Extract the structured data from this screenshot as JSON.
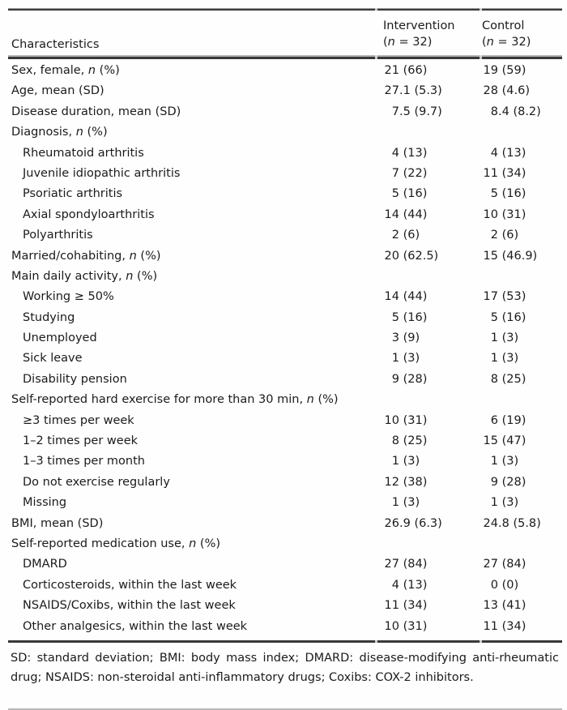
{
  "header": {
    "characteristics": "Characteristics",
    "groups": [
      {
        "title": "Intervention",
        "pre": "(",
        "n": "n",
        "post": " = 32)"
      },
      {
        "title": "Control",
        "pre": "(",
        "n": "n",
        "post": " = 32)"
      }
    ]
  },
  "np_suffix": {
    "pre": ", ",
    "n": "n",
    "post": " (%)"
  },
  "rows": [
    {
      "label": "Sex, female",
      "np": true,
      "ind": false,
      "v1": "21 (66)",
      "v2": "19 (59)"
    },
    {
      "label": "Age, mean (SD)",
      "np": false,
      "ind": false,
      "v1": "27.1 (5.3)",
      "v2": "28 (4.6)"
    },
    {
      "label": "Disease duration, mean (SD)",
      "np": false,
      "ind": false,
      "v1": "7.5 (9.7)",
      "v2": "8.4 (8.2)"
    },
    {
      "label": "Diagnosis",
      "np": true,
      "ind": false,
      "v1": null,
      "v2": null
    },
    {
      "label": "Rheumatoid arthritis",
      "np": false,
      "ind": true,
      "v1": "4 (13)",
      "v2": "4 (13)"
    },
    {
      "label": "Juvenile idiopathic arthritis",
      "np": false,
      "ind": true,
      "v1": "7 (22)",
      "v2": "11 (34)"
    },
    {
      "label": "Psoriatic arthritis",
      "np": false,
      "ind": true,
      "v1": "5 (16)",
      "v2": "5 (16)"
    },
    {
      "label": "Axial spondyloarthritis",
      "np": false,
      "ind": true,
      "v1": "14 (44)",
      "v2": "10 (31)"
    },
    {
      "label": "Polyarthritis",
      "np": false,
      "ind": true,
      "v1": "2 (6)",
      "v2": "2 (6)"
    },
    {
      "label": "Married/cohabiting",
      "np": true,
      "ind": false,
      "v1": "20 (62.5)",
      "v2": "15 (46.9)"
    },
    {
      "label": "Main daily activity",
      "np": true,
      "ind": false,
      "v1": null,
      "v2": null
    },
    {
      "label": "Working ≥ 50%",
      "np": false,
      "ind": true,
      "v1": "14 (44)",
      "v2": "17 (53)"
    },
    {
      "label": "Studying",
      "np": false,
      "ind": true,
      "v1": "5 (16)",
      "v2": "5 (16)"
    },
    {
      "label": "Unemployed",
      "np": false,
      "ind": true,
      "v1": "3 (9)",
      "v2": "1 (3)"
    },
    {
      "label": "Sick leave",
      "np": false,
      "ind": true,
      "v1": "1 (3)",
      "v2": "1 (3)"
    },
    {
      "label": "Disability pension",
      "np": false,
      "ind": true,
      "v1": "9 (28)",
      "v2": "8 (25)"
    },
    {
      "label": "Self-reported hard exercise for more than 30 min",
      "np": true,
      "ind": false,
      "v1": null,
      "v2": null
    },
    {
      "label": "≥3 times per week",
      "np": false,
      "ind": true,
      "v1": "10 (31)",
      "v2": "6 (19)"
    },
    {
      "label": "1–2 times per week",
      "np": false,
      "ind": true,
      "v1": "8 (25)",
      "v2": "15 (47)"
    },
    {
      "label": "1–3 times per month",
      "np": false,
      "ind": true,
      "v1": "1 (3)",
      "v2": "1 (3)"
    },
    {
      "label": "Do not exercise regularly",
      "np": false,
      "ind": true,
      "v1": "12 (38)",
      "v2": "9 (28)"
    },
    {
      "label": "Missing",
      "np": false,
      "ind": true,
      "v1": "1 (3)",
      "v2": "1 (3)"
    },
    {
      "label": "BMI, mean (SD)",
      "np": false,
      "ind": false,
      "v1": "26.9 (6.3)",
      "v2": "24.8 (5.8)"
    },
    {
      "label": "Self-reported medication use",
      "np": true,
      "ind": false,
      "v1": null,
      "v2": null
    },
    {
      "label": "DMARD",
      "np": false,
      "ind": true,
      "v1": "27 (84)",
      "v2": "27 (84)"
    },
    {
      "label": "Corticosteroids, within the last week",
      "np": false,
      "ind": true,
      "v1": "4 (13)",
      "v2": "0 (0)"
    },
    {
      "label": "NSAIDS/Coxibs, within the last week",
      "np": false,
      "ind": true,
      "v1": "11 (34)",
      "v2": "13 (41)"
    },
    {
      "label": "Other analgesics, within the last week",
      "np": false,
      "ind": true,
      "v1": "10 (31)",
      "v2": "11 (34)"
    }
  ],
  "footnote": "SD: standard deviation; BMI: body mass index; DMARD: disease-modifying anti-rheumatic drug; NSAIDS: non-steroidal anti-inflammatory drugs; Coxibs: COX-2 inhibitors."
}
